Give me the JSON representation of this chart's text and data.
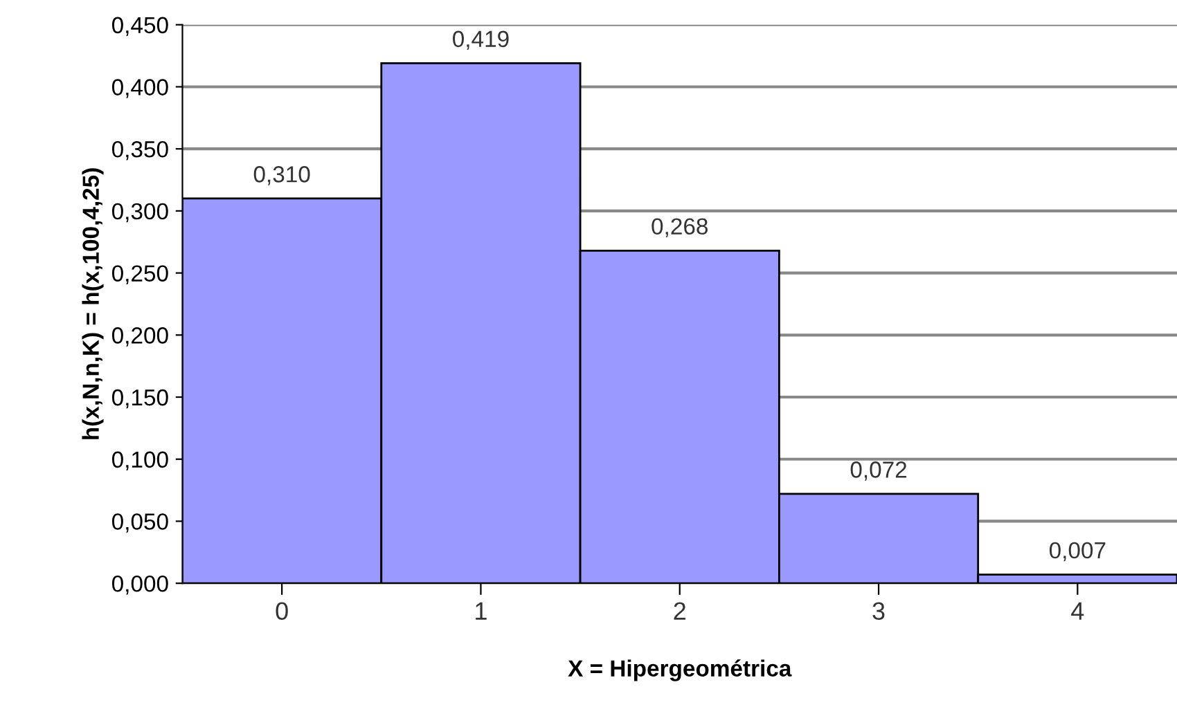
{
  "chart_data": {
    "type": "bar",
    "xlabel": "X = Hipergeométrica",
    "ylabel": "h(x,N,n,K) = h(x,100,4,25)",
    "categories": [
      "0",
      "1",
      "2",
      "3",
      "4"
    ],
    "values": [
      0.31,
      0.419,
      0.268,
      0.072,
      0.007
    ],
    "value_labels": [
      "0,310",
      "0,419",
      "0,268",
      "0,072",
      "0,007"
    ],
    "color": "#9999ff",
    "ylim": [
      0,
      0.45
    ],
    "yticks": [
      {
        "value": 0,
        "label": "0,000"
      },
      {
        "value": 0.05,
        "label": "0,050"
      },
      {
        "value": 0.1,
        "label": "0,100"
      },
      {
        "value": 0.15,
        "label": "0,150"
      },
      {
        "value": 0.2,
        "label": "0,200"
      },
      {
        "value": 0.25,
        "label": "0,250"
      },
      {
        "value": 0.3,
        "label": "0,300"
      },
      {
        "value": 0.35,
        "label": "0,350"
      },
      {
        "value": 0.4,
        "label": "0,400"
      },
      {
        "value": 0.45,
        "label": "0,450"
      }
    ],
    "grid": "y"
  }
}
